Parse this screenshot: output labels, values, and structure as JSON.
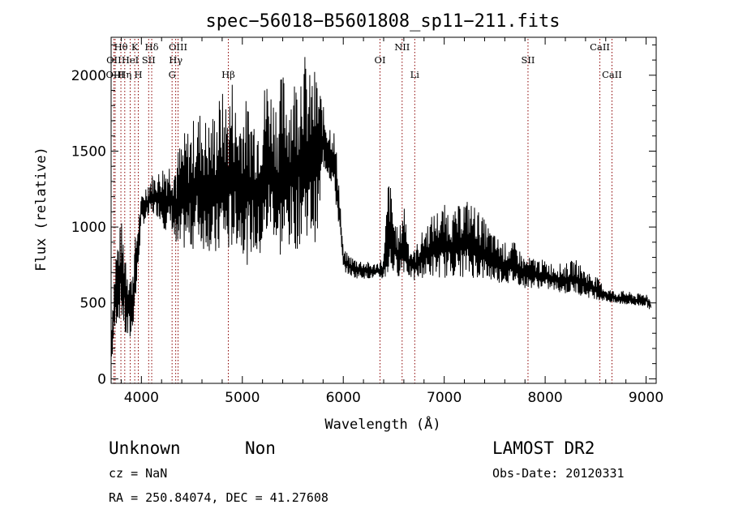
{
  "chart_data": {
    "type": "line",
    "title": "spec−56018−B5601808_sp11−211.fits",
    "xlabel": "Wavelength (Å)",
    "ylabel": "Flux (relative)",
    "xlim": [
      3700,
      9100
    ],
    "ylim": [
      -30,
      2250
    ],
    "x_ticks": [
      4000,
      5000,
      6000,
      7000,
      8000,
      9000
    ],
    "y_ticks": [
      0,
      500,
      1000,
      1500,
      2000
    ],
    "x_minor_step": 200,
    "y_minor_step": 100,
    "grid": false,
    "line_color": "#000000",
    "marker_color": "#8b0000",
    "spectrum_envelope": {
      "x": [
        3700,
        3720,
        3750,
        3800,
        3850,
        3900,
        3950,
        4000,
        4050,
        4100,
        4150,
        4200,
        4250,
        4300,
        4350,
        4400,
        4450,
        4500,
        4550,
        4600,
        4650,
        4700,
        4750,
        4800,
        4850,
        4900,
        4950,
        5000,
        5050,
        5100,
        5150,
        5200,
        5250,
        5300,
        5350,
        5400,
        5450,
        5500,
        5550,
        5600,
        5650,
        5700,
        5750,
        5800,
        5850,
        5900,
        5950,
        6000,
        6100,
        6200,
        6300,
        6400,
        6450,
        6500,
        6550,
        6600,
        6650,
        6700,
        6800,
        6900,
        7000,
        7100,
        7200,
        7300,
        7400,
        7500,
        7600,
        7700,
        7800,
        7900,
        8000,
        8100,
        8200,
        8300,
        8400,
        8500,
        8600,
        8700,
        8800,
        8900,
        9000,
        9050
      ],
      "low": [
        0,
        150,
        300,
        350,
        150,
        200,
        500,
        1000,
        1000,
        1050,
        1050,
        1000,
        900,
        950,
        700,
        750,
        800,
        750,
        850,
        750,
        800,
        700,
        650,
        800,
        700,
        750,
        800,
        750,
        650,
        750,
        650,
        700,
        800,
        900,
        650,
        700,
        750,
        750,
        750,
        800,
        850,
        800,
        800,
        1350,
        1300,
        1200,
        1000,
        700,
        650,
        650,
        650,
        640,
        600,
        650,
        650,
        650,
        650,
        620,
        640,
        630,
        620,
        640,
        620,
        620,
        610,
        610,
        600,
        600,
        580,
        580,
        570,
        560,
        540,
        540,
        520,
        510,
        500,
        480,
        480,
        470,
        470,
        440
      ],
      "high": [
        420,
        600,
        900,
        1050,
        900,
        700,
        1000,
        1200,
        1300,
        1350,
        1350,
        1400,
        1450,
        1450,
        1500,
        1600,
        1650,
        1700,
        1750,
        1800,
        1700,
        1750,
        1850,
        1900,
        1850,
        2000,
        1750,
        1850,
        1850,
        1800,
        1800,
        1900,
        2050,
        1900,
        1900,
        2050,
        1950,
        2000,
        2050,
        2250,
        2000,
        2050,
        2050,
        1800,
        1700,
        1700,
        1400,
        850,
        800,
        780,
        760,
        800,
        1380,
        1100,
        950,
        1200,
        900,
        850,
        1000,
        1100,
        1150,
        1100,
        1200,
        1150,
        1050,
        950,
        900,
        900,
        800,
        800,
        780,
        760,
        760,
        790,
        720,
        680,
        600,
        580,
        580,
        560,
        570,
        520
      ]
    },
    "line_markers": [
      {
        "name": "Hθ",
        "x": 3797,
        "row": 1
      },
      {
        "name": "K",
        "x": 3934,
        "row": 1
      },
      {
        "name": "Hδ",
        "x": 4102,
        "row": 1
      },
      {
        "name": "OIII",
        "x": 4363,
        "row": 1
      },
      {
        "name": "NII",
        "x": 6583,
        "row": 1
      },
      {
        "name": "CaII",
        "x": 8542,
        "row": 1
      },
      {
        "name": "OII",
        "x": 3727,
        "row": 2
      },
      {
        "name": "HeI",
        "x": 3889,
        "row": 2
      },
      {
        "name": "SII",
        "x": 4072,
        "row": 2
      },
      {
        "name": "Hγ",
        "x": 4340,
        "row": 2
      },
      {
        "name": "OI",
        "x": 6364,
        "row": 2
      },
      {
        "name": "SII",
        "x": 7830,
        "row": 2
      },
      {
        "name": "OIII",
        "x": 3740,
        "row": 3
      },
      {
        "name": "Hη",
        "x": 3835,
        "row": 3
      },
      {
        "name": "H",
        "x": 3969,
        "row": 3
      },
      {
        "name": "G",
        "x": 4304,
        "row": 3
      },
      {
        "name": "Hβ",
        "x": 4861,
        "row": 3
      },
      {
        "name": "Li",
        "x": 6708,
        "row": 3
      },
      {
        "name": "CaII",
        "x": 8662,
        "row": 3
      }
    ]
  },
  "info": {
    "class": "Unknown",
    "subclass": "Non",
    "cz": "cz = NaN",
    "radec": "RA = 250.84074, DEC =  41.27608",
    "survey": "LAMOST DR2",
    "obs_date": "Obs-Date: 20120331"
  }
}
